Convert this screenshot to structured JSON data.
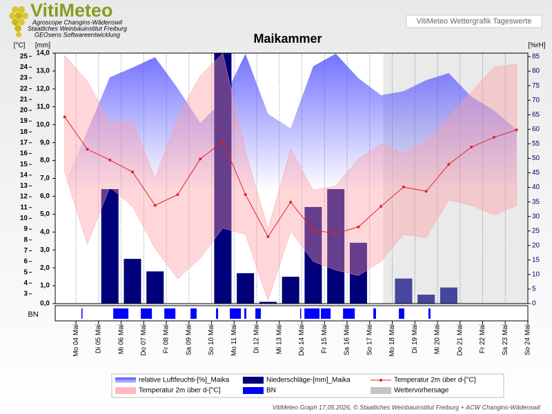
{
  "header": {
    "logo": "VitiMeteo",
    "lines": [
      "Agroscope Changins-Wädenswil",
      "Staatliches Weinbauinstitut Freiburg",
      "GEOsens Softwareentwicklung"
    ],
    "badge": "VitiMeteo Wettergrafik Tageswerte"
  },
  "footer": "VitiMeteo Graph 17.05.2026, © Staatliches Weinbauinstitut Freiburg + ACW Changins-Wädenswil",
  "chart_data": {
    "type": "combo",
    "title": "Maikammer",
    "y_label": "[mm]",
    "temp_label": "[°C]",
    "y2_label": "[%rH]",
    "strip_label": "BN",
    "categories": [
      "Mo 04 Mai",
      "Di 05 Mai",
      "Mi 06 Mai",
      "Do 07 Mai",
      "Fr 08 Mai",
      "Sa 09 Mai",
      "So 10 Mai",
      "Mo 11 Mai",
      "Di 12 Mai",
      "Mi 13 Mai",
      "Do 14 Mai",
      "Fr 15 Mai",
      "Sa 16 Mai",
      "So 17 Mai",
      "Mo 18 Mai",
      "Di 19 Mai",
      "Mi 20 Mai",
      "Do 21 Mai",
      "Fr 22 Mai",
      "Sa 23 Mai",
      "So 24 Mai"
    ],
    "xlim": [
      -0.92,
      20
    ],
    "ylim": [
      0,
      14
    ],
    "yticks": [
      {
        "value": 0,
        "label": "0,0"
      },
      {
        "value": 1,
        "label": "1,0"
      },
      {
        "value": 2,
        "label": "2,0"
      },
      {
        "value": 3,
        "label": "3,0"
      },
      {
        "value": 4,
        "label": "4,0"
      },
      {
        "value": 5,
        "label": "5,0"
      },
      {
        "value": 6,
        "label": "6,0"
      },
      {
        "value": 7,
        "label": "7,0"
      },
      {
        "value": 8,
        "label": "8,0"
      },
      {
        "value": 9,
        "label": "9,0"
      },
      {
        "value": 10,
        "label": "10,0"
      },
      {
        "value": 11,
        "label": "11,0"
      },
      {
        "value": 12,
        "label": "12,0"
      },
      {
        "value": 13,
        "label": "13,0"
      },
      {
        "value": 14,
        "label": "14,0"
      }
    ],
    "temp_lim": [
      2.1,
      25.3
    ],
    "temp_ticks": [
      3,
      4,
      5,
      6,
      7,
      8,
      9,
      10,
      11,
      12,
      13,
      14,
      15,
      16,
      17,
      18,
      19,
      20,
      21,
      22,
      23,
      24,
      25
    ],
    "y2lim": [
      0,
      86.2
    ],
    "y2ticks": [
      0,
      5,
      10,
      15,
      20,
      25,
      30,
      35,
      40,
      45,
      50,
      55,
      60,
      65,
      70,
      75,
      80,
      85
    ],
    "series": [
      {
        "name": "relative Luftfeuchti-[%]_Maika",
        "type": "area",
        "axis": "y2",
        "color": "#5a5aff",
        "values": [
          40.8,
          59.4,
          77.9,
          81.2,
          84.8,
          74.1,
          62.2,
          70.0,
          86.0,
          65.3,
          60.3,
          81.7,
          86.0,
          77.6,
          71.7,
          73.1,
          76.9,
          79.3,
          71.2,
          66.5,
          59.8
        ]
      },
      {
        "name": "Niederschläge-[mm]_Maika",
        "type": "bar",
        "color": "#00007a",
        "values": [
          0,
          0,
          6.4,
          2.5,
          1.8,
          0,
          0,
          14.0,
          1.7,
          0.1,
          1.5,
          5.4,
          6.4,
          3.4,
          0,
          1.4,
          0.5,
          0.9,
          0,
          0,
          0
        ]
      },
      {
        "name": "Temperatur 2m über d-[°C]",
        "type": "line",
        "axis": "temp",
        "color": "#e02020",
        "values": [
          19.4,
          16.4,
          15.4,
          14.3,
          11.2,
          12.2,
          15.5,
          17.1,
          12.2,
          8.3,
          11.5,
          8.9,
          8.6,
          9.2,
          11.1,
          12.9,
          12.5,
          15.0,
          16.6,
          17.5,
          18.2
        ]
      },
      {
        "name": "Temperatur 2m über d-[°C]",
        "type": "range",
        "axis": "temp",
        "color": "#ff9aa6",
        "high": [
          25.1,
          22.7,
          18.9,
          19.0,
          13.7,
          19.4,
          23.2,
          25.3,
          16.2,
          9.0,
          16.4,
          12.6,
          13.0,
          15.5,
          16.9,
          16.0,
          17.2,
          19.4,
          21.7,
          24.0,
          24.3
        ],
        "low": [
          14.3,
          7.6,
          12.9,
          11.1,
          7.2,
          4.4,
          6.3,
          9.1,
          8.5,
          2.4,
          8.8,
          6.0,
          5.2,
          4.7,
          6.0,
          8.5,
          8.2,
          11.7,
          11.2,
          10.3,
          11.2
        ]
      },
      {
        "name": "BN",
        "type": "strip",
        "color": "#0000ff",
        "segments": [
          [
            0.24,
            0.27
          ],
          [
            1.65,
            2.32
          ],
          [
            2.87,
            3.36
          ],
          [
            3.91,
            4.4
          ],
          [
            5.07,
            5.34
          ],
          [
            6.2,
            6.29
          ],
          [
            6.81,
            7.3
          ],
          [
            7.45,
            7.54
          ],
          [
            7.94,
            8.18
          ],
          [
            9.92,
            9.95
          ],
          [
            10.11,
            10.78
          ],
          [
            10.84,
            11.27
          ],
          [
            11.82,
            12.34
          ],
          [
            13.16,
            13.28
          ],
          [
            14.29,
            14.53
          ],
          [
            15.6,
            15.69
          ]
        ]
      }
    ],
    "forecast": {
      "name": "Wettervorhersage",
      "color": "#c4c4c4",
      "start": 13.6
    }
  }
}
